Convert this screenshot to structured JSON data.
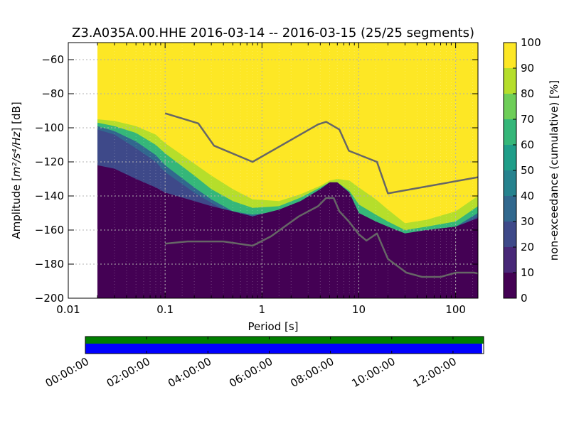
{
  "chart_data": {
    "type": "heatmap",
    "title": "Z3.A035A.00.HHE   2016-03-14 -- 2016-03-15  (25/25 segments)",
    "xlabel": "Period [s]",
    "ylabel_prefix": "Amplitude [",
    "ylabel_math": "m²/s⁴/Hz",
    "ylabel_suffix": "] [dB]",
    "x_scale": "log",
    "xlim": [
      0.01,
      170
    ],
    "ylim": [
      -200,
      -50
    ],
    "x_ticks": [
      {
        "value": 0.01,
        "label": "0.01"
      },
      {
        "value": 0.1,
        "label": "0.1"
      },
      {
        "value": 1,
        "label": "1"
      },
      {
        "value": 10,
        "label": "10"
      },
      {
        "value": 100,
        "label": "100"
      }
    ],
    "y_ticks": [
      {
        "value": -60,
        "label": "−60"
      },
      {
        "value": -80,
        "label": "−80"
      },
      {
        "value": -100,
        "label": "−100"
      },
      {
        "value": -120,
        "label": "−120"
      },
      {
        "value": -140,
        "label": "−140"
      },
      {
        "value": -160,
        "label": "−160"
      },
      {
        "value": -180,
        "label": "−180"
      },
      {
        "value": -200,
        "label": "−200"
      }
    ],
    "grid": true,
    "data_period_start": 0.02,
    "colorbar": {
      "label": "non-exceedance (cumulative) [%]",
      "range": [
        0,
        100
      ],
      "ticks": [
        {
          "value": 0,
          "label": "0"
        },
        {
          "value": 10,
          "label": "10"
        },
        {
          "value": 20,
          "label": "20"
        },
        {
          "value": 30,
          "label": "30"
        },
        {
          "value": 40,
          "label": "40"
        },
        {
          "value": 50,
          "label": "50"
        },
        {
          "value": 60,
          "label": "60"
        },
        {
          "value": 70,
          "label": "70"
        },
        {
          "value": 80,
          "label": "80"
        },
        {
          "value": 90,
          "label": "90"
        },
        {
          "value": 100,
          "label": "100"
        }
      ],
      "colors": [
        "#440154",
        "#482878",
        "#3e4989",
        "#31688e",
        "#26828e",
        "#1f9e89",
        "#35b779",
        "#6ece58",
        "#b5de2b",
        "#fde725"
      ]
    },
    "percentile_boundaries": [
      {
        "level": 10,
        "points": [
          [
            0.02,
            -122
          ],
          [
            0.03,
            -124
          ],
          [
            0.05,
            -130
          ],
          [
            0.08,
            -135
          ],
          [
            0.1,
            -138
          ],
          [
            0.2,
            -143
          ],
          [
            0.3,
            -146
          ],
          [
            0.5,
            -149
          ],
          [
            0.8,
            -152
          ],
          [
            1.5,
            -148
          ],
          [
            2.5,
            -143
          ],
          [
            4,
            -136
          ],
          [
            5,
            -132
          ],
          [
            6,
            -132
          ],
          [
            8,
            -138
          ],
          [
            10,
            -150
          ],
          [
            15,
            -155
          ],
          [
            20,
            -158
          ],
          [
            30,
            -162
          ],
          [
            50,
            -160
          ],
          [
            100,
            -158
          ],
          [
            170,
            -153
          ]
        ]
      },
      {
        "level": 20,
        "points": [
          [
            0.02,
            -101
          ],
          [
            0.03,
            -104
          ],
          [
            0.05,
            -112
          ],
          [
            0.08,
            -120
          ],
          [
            0.1,
            -126
          ],
          [
            0.2,
            -138
          ],
          [
            0.3,
            -144
          ],
          [
            0.5,
            -151
          ],
          [
            0.8,
            -153
          ],
          [
            1.5,
            -150
          ],
          [
            2.5,
            -145
          ],
          [
            4,
            -138
          ],
          [
            5,
            -134
          ],
          [
            6,
            -134
          ],
          [
            8,
            -141
          ],
          [
            10,
            -152
          ],
          [
            15,
            -157
          ],
          [
            20,
            -160
          ],
          [
            30,
            -163
          ],
          [
            50,
            -161
          ],
          [
            100,
            -159
          ],
          [
            170,
            -152
          ]
        ]
      },
      {
        "level": 40,
        "points": [
          [
            0.02,
            -99
          ],
          [
            0.03,
            -102
          ],
          [
            0.05,
            -108
          ],
          [
            0.08,
            -116
          ],
          [
            0.1,
            -122
          ],
          [
            0.2,
            -135
          ],
          [
            0.3,
            -142
          ],
          [
            0.5,
            -149
          ],
          [
            0.8,
            -151
          ],
          [
            1.5,
            -149
          ],
          [
            2.5,
            -144
          ],
          [
            4,
            -137
          ],
          [
            5,
            -133
          ],
          [
            6,
            -133
          ],
          [
            8,
            -140
          ],
          [
            10,
            -150
          ],
          [
            15,
            -156
          ],
          [
            20,
            -159
          ],
          [
            30,
            -162
          ],
          [
            50,
            -160
          ],
          [
            100,
            -158
          ],
          [
            170,
            -150
          ]
        ]
      },
      {
        "level": 70,
        "points": [
          [
            0.02,
            -97
          ],
          [
            0.03,
            -99
          ],
          [
            0.05,
            -103
          ],
          [
            0.08,
            -110
          ],
          [
            0.1,
            -115
          ],
          [
            0.2,
            -128
          ],
          [
            0.3,
            -136
          ],
          [
            0.5,
            -143
          ],
          [
            0.8,
            -147
          ],
          [
            1.5,
            -146
          ],
          [
            2.5,
            -141
          ],
          [
            4,
            -135
          ],
          [
            5,
            -132
          ],
          [
            6,
            -132
          ],
          [
            8,
            -137
          ],
          [
            10,
            -145
          ],
          [
            15,
            -151
          ],
          [
            20,
            -155
          ],
          [
            30,
            -160
          ],
          [
            50,
            -158
          ],
          [
            100,
            -155
          ],
          [
            170,
            -146
          ]
        ]
      },
      {
        "level": 90,
        "points": [
          [
            0.02,
            -95
          ],
          [
            0.03,
            -96
          ],
          [
            0.05,
            -99
          ],
          [
            0.08,
            -104
          ],
          [
            0.1,
            -109
          ],
          [
            0.2,
            -121
          ],
          [
            0.3,
            -128
          ],
          [
            0.5,
            -136
          ],
          [
            0.8,
            -142
          ],
          [
            1.5,
            -143
          ],
          [
            2.5,
            -139
          ],
          [
            4,
            -134
          ],
          [
            5,
            -131
          ],
          [
            6,
            -130
          ],
          [
            8,
            -131
          ],
          [
            10,
            -135
          ],
          [
            15,
            -142
          ],
          [
            20,
            -148
          ],
          [
            30,
            -156
          ],
          [
            50,
            -154
          ],
          [
            100,
            -149
          ],
          [
            170,
            -140
          ]
        ]
      }
    ],
    "reference_curves": [
      {
        "kind": "high",
        "points": [
          [
            0.1,
            -91.5
          ],
          [
            0.22,
            -97.4
          ],
          [
            0.32,
            -110.5
          ],
          [
            0.8,
            -120
          ],
          [
            3.8,
            -98
          ],
          [
            4.6,
            -96.5
          ],
          [
            6.3,
            -101
          ],
          [
            7.9,
            -113.5
          ],
          [
            15.4,
            -120
          ],
          [
            20,
            -138.5
          ],
          [
            170,
            -129
          ]
        ]
      },
      {
        "kind": "low",
        "points": [
          [
            0.1,
            -168
          ],
          [
            0.17,
            -166.7
          ],
          [
            0.4,
            -166.7
          ],
          [
            0.8,
            -169.2
          ],
          [
            1.24,
            -163.7
          ],
          [
            2.4,
            -152
          ],
          [
            3.8,
            -146
          ],
          [
            4.6,
            -141.2
          ],
          [
            5.5,
            -141.2
          ],
          [
            6.3,
            -149
          ],
          [
            7.9,
            -155
          ],
          [
            10,
            -162.5
          ],
          [
            12,
            -166.2
          ],
          [
            15.4,
            -162
          ],
          [
            20,
            -177
          ],
          [
            31,
            -185
          ],
          [
            45,
            -187.5
          ],
          [
            70,
            -187.5
          ],
          [
            101,
            -185
          ],
          [
            154,
            -185
          ],
          [
            170,
            -185.5
          ]
        ]
      }
    ],
    "timeline": {
      "tick_labels": [
        "00:00:00",
        "02:00:00",
        "04:00:00",
        "06:00:00",
        "08:00:00",
        "10:00:00",
        "12:00:00"
      ],
      "tick_hours": [
        0,
        2,
        4,
        6,
        8,
        10,
        12
      ],
      "range_hours": [
        0,
        13
      ],
      "data_coverage_hours": [
        0,
        13
      ],
      "psd_coverage_hours": [
        0,
        12.95
      ],
      "data_color": "#007f00",
      "psd_color": "#0000ff"
    }
  }
}
